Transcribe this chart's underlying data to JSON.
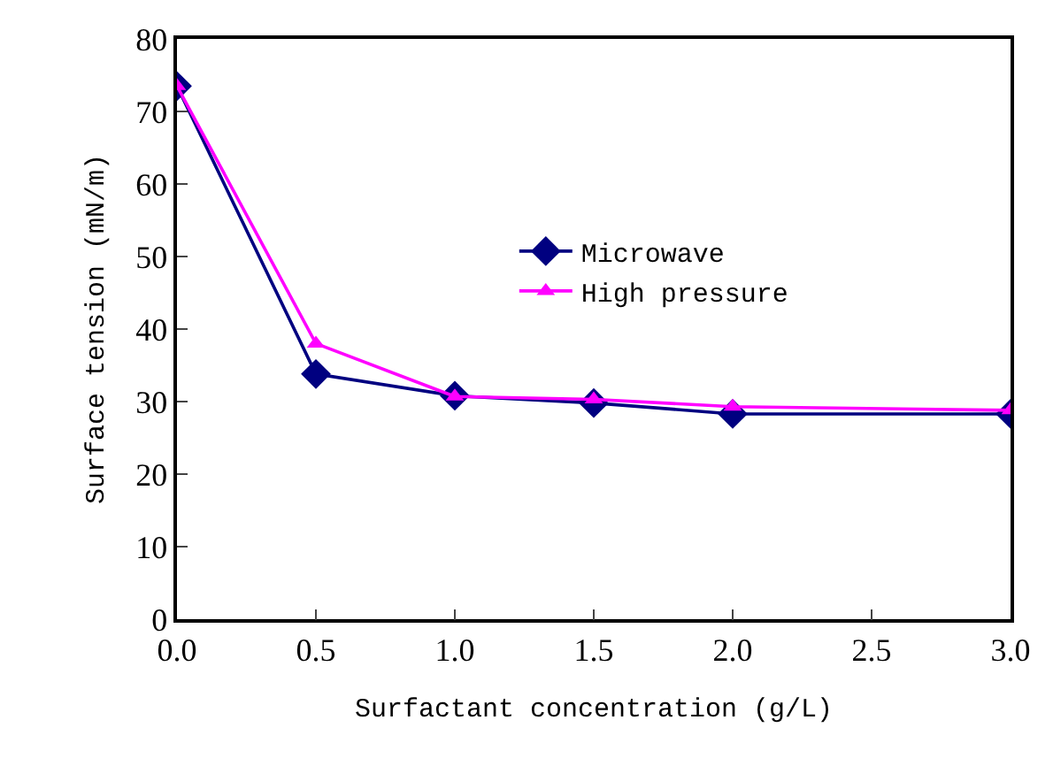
{
  "chart_data": {
    "type": "line",
    "xlabel": "Surfactant concentration (g/L)",
    "ylabel": "Surface tension (mN/m)",
    "x": [
      0,
      0.5,
      1,
      1.5,
      2,
      3
    ],
    "series": [
      {
        "name": "Microwave",
        "color": "#000080",
        "marker": "diamond",
        "values": [
          73.5,
          33.8,
          30.8,
          29.8,
          28.3,
          28.3
        ]
      },
      {
        "name": "High pressure",
        "color": "#ff00ff",
        "marker": "triangle",
        "values": [
          73.5,
          38.0,
          30.7,
          30.3,
          29.3,
          28.8
        ]
      }
    ],
    "xlim": [
      0,
      3
    ],
    "xticks": [
      {
        "value": 0,
        "label": "0.0"
      },
      {
        "value": 0.5,
        "label": "0.5"
      },
      {
        "value": 1,
        "label": "1.0"
      },
      {
        "value": 1.5,
        "label": "1.5"
      },
      {
        "value": 2,
        "label": "2.0"
      },
      {
        "value": 2.5,
        "label": "2.5"
      },
      {
        "value": 3,
        "label": "3.0"
      }
    ],
    "ylim": [
      0,
      80
    ],
    "yticks": [
      0,
      10,
      20,
      30,
      40,
      50,
      60,
      70,
      80
    ],
    "grid": false,
    "legend": "center",
    "line_style": "solid"
  }
}
